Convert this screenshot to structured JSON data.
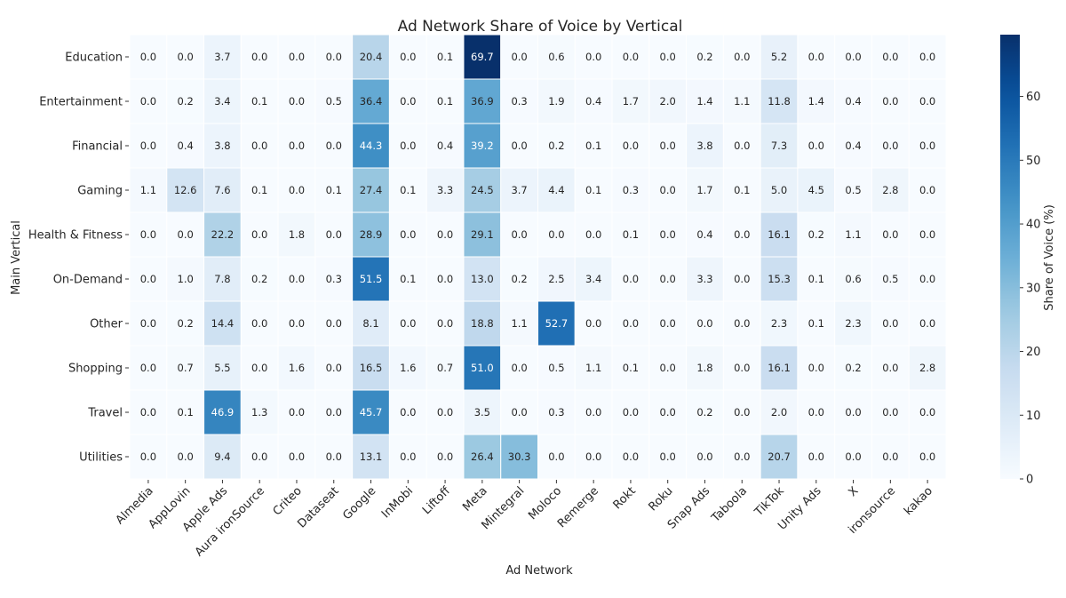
{
  "chart_data": {
    "type": "heatmap",
    "title": "Ad Network Share of Voice by Vertical",
    "xlabel": "Ad Network",
    "ylabel": "Main Vertical",
    "colorbar_label": "Share of Voice (%)",
    "colorbar_ticks": [
      0,
      10,
      20,
      30,
      40,
      50,
      60
    ],
    "value_range": [
      0,
      69.7
    ],
    "colormap": "Blues",
    "columns": [
      "Almedia",
      "AppLovin",
      "Apple Ads",
      "Aura ironSource",
      "Criteo",
      "Dataseat",
      "Google",
      "InMobi",
      "Liftoff",
      "Meta",
      "Mintegral",
      "Moloco",
      "Remerge",
      "Rokt",
      "Roku",
      "Snap Ads",
      "Taboola",
      "TikTok",
      "Unity Ads",
      "X",
      "ironsource",
      "kakao"
    ],
    "rows": [
      "Education",
      "Entertainment",
      "Financial",
      "Gaming",
      "Health & Fitness",
      "On-Demand",
      "Other",
      "Shopping",
      "Travel",
      "Utilities"
    ],
    "values": [
      [
        0.0,
        0.0,
        3.7,
        0.0,
        0.0,
        0.0,
        20.4,
        0.0,
        0.1,
        69.7,
        0.0,
        0.6,
        0.0,
        0.0,
        0.0,
        0.2,
        0.0,
        5.2,
        0.0,
        0.0,
        0.0,
        0.0
      ],
      [
        0.0,
        0.2,
        3.4,
        0.1,
        0.0,
        0.5,
        36.4,
        0.0,
        0.1,
        36.9,
        0.3,
        1.9,
        0.4,
        1.7,
        2.0,
        1.4,
        1.1,
        11.8,
        1.4,
        0.4,
        0.0,
        0.0
      ],
      [
        0.0,
        0.4,
        3.8,
        0.0,
        0.0,
        0.0,
        44.3,
        0.0,
        0.4,
        39.2,
        0.0,
        0.2,
        0.1,
        0.0,
        0.0,
        3.8,
        0.0,
        7.3,
        0.0,
        0.4,
        0.0,
        0.0
      ],
      [
        1.1,
        12.6,
        7.6,
        0.1,
        0.0,
        0.1,
        27.4,
        0.1,
        3.3,
        24.5,
        3.7,
        4.4,
        0.1,
        0.3,
        0.0,
        1.7,
        0.1,
        5.0,
        4.5,
        0.5,
        2.8,
        0.0
      ],
      [
        0.0,
        0.0,
        22.2,
        0.0,
        1.8,
        0.0,
        28.9,
        0.0,
        0.0,
        29.1,
        0.0,
        0.0,
        0.0,
        0.1,
        0.0,
        0.4,
        0.0,
        16.1,
        0.2,
        1.1,
        0.0,
        0.0
      ],
      [
        0.0,
        1.0,
        7.8,
        0.2,
        0.0,
        0.3,
        51.5,
        0.1,
        0.0,
        13.0,
        0.2,
        2.5,
        3.4,
        0.0,
        0.0,
        3.3,
        0.0,
        15.3,
        0.1,
        0.6,
        0.5,
        0.0
      ],
      [
        0.0,
        0.2,
        14.4,
        0.0,
        0.0,
        0.0,
        8.1,
        0.0,
        0.0,
        18.8,
        1.1,
        52.7,
        0.0,
        0.0,
        0.0,
        0.0,
        0.0,
        2.3,
        0.1,
        2.3,
        0.0,
        0.0
      ],
      [
        0.0,
        0.7,
        5.5,
        0.0,
        1.6,
        0.0,
        16.5,
        1.6,
        0.7,
        51.0,
        0.0,
        0.5,
        1.1,
        0.1,
        0.0,
        1.8,
        0.0,
        16.1,
        0.0,
        0.2,
        0.0,
        2.8
      ],
      [
        0.0,
        0.1,
        46.9,
        1.3,
        0.0,
        0.0,
        45.7,
        0.0,
        0.0,
        3.5,
        0.0,
        0.3,
        0.0,
        0.0,
        0.0,
        0.2,
        0.0,
        2.0,
        0.0,
        0.0,
        0.0,
        0.0
      ],
      [
        0.0,
        0.0,
        9.4,
        0.0,
        0.0,
        0.0,
        13.1,
        0.0,
        0.0,
        26.4,
        30.3,
        0.0,
        0.0,
        0.0,
        0.0,
        0.0,
        0.0,
        20.7,
        0.0,
        0.0,
        0.0,
        0.0
      ]
    ]
  }
}
